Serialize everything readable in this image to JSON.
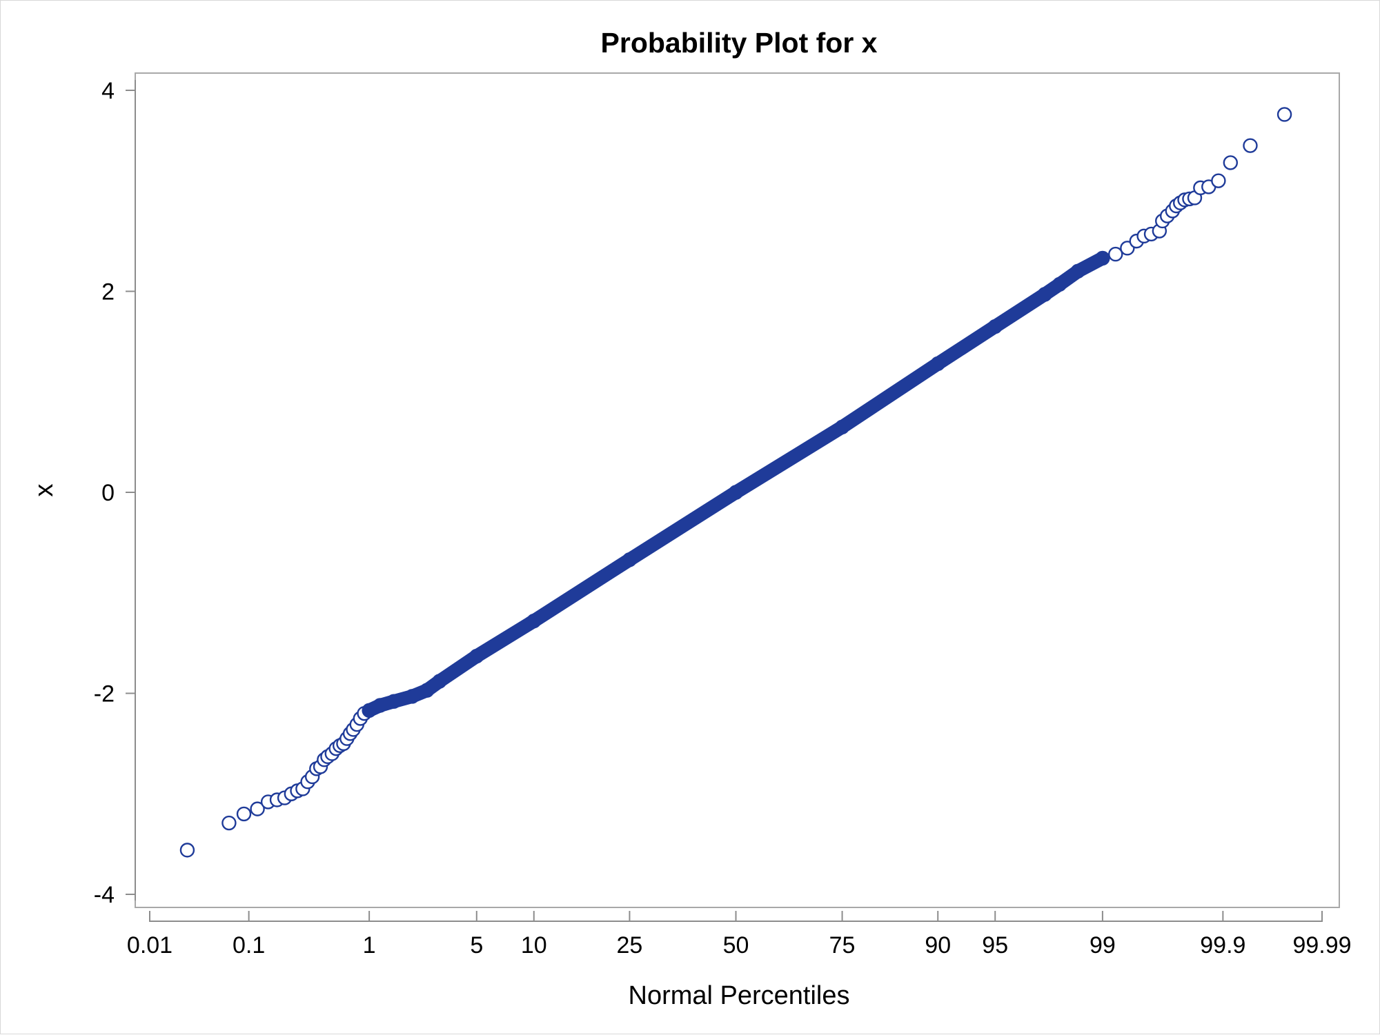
{
  "chart_data": {
    "type": "scatter",
    "title": "Probability Plot for x",
    "xlabel": "Normal Percentiles",
    "ylabel": "x",
    "x_scale": "normal-probability",
    "x_ticks": [
      0.01,
      0.1,
      1,
      5,
      10,
      25,
      50,
      75,
      90,
      95,
      99,
      99.9,
      99.99
    ],
    "x_tick_labels": [
      "0.01",
      "0.1",
      "1",
      "5",
      "10",
      "25",
      "50",
      "75",
      "90",
      "95",
      "99",
      "99.9",
      "99.99"
    ],
    "y_ticks": [
      -4,
      -2,
      0,
      2,
      4
    ],
    "y_tick_labels": [
      "-4",
      "-2",
      "0",
      "2",
      "4"
    ],
    "ylim": [
      -4.1,
      4.15
    ],
    "grid": false,
    "marker": "open-circle",
    "colors": {
      "marker": "#1f3b99"
    },
    "n_points": 10000,
    "series": [
      {
        "points": [
          {
            "x": 0.025,
            "y": -3.56
          },
          {
            "x": 0.065,
            "y": -3.29
          },
          {
            "x": 0.09,
            "y": -3.2
          },
          {
            "x": 0.12,
            "y": -3.15
          },
          {
            "x": 0.15,
            "y": -3.08
          },
          {
            "x": 0.18,
            "y": -3.06
          },
          {
            "x": 0.21,
            "y": -3.04
          },
          {
            "x": 0.24,
            "y": -3.0
          },
          {
            "x": 0.27,
            "y": -2.97
          },
          {
            "x": 0.3,
            "y": -2.95
          },
          {
            "x": 0.33,
            "y": -2.88
          },
          {
            "x": 0.36,
            "y": -2.83
          },
          {
            "x": 0.39,
            "y": -2.75
          },
          {
            "x": 0.42,
            "y": -2.73
          },
          {
            "x": 0.45,
            "y": -2.66
          },
          {
            "x": 0.48,
            "y": -2.63
          },
          {
            "x": 0.52,
            "y": -2.6
          },
          {
            "x": 0.56,
            "y": -2.55
          },
          {
            "x": 0.6,
            "y": -2.52
          },
          {
            "x": 0.64,
            "y": -2.5
          },
          {
            "x": 0.68,
            "y": -2.45
          },
          {
            "x": 0.72,
            "y": -2.4
          },
          {
            "x": 0.76,
            "y": -2.36
          },
          {
            "x": 0.81,
            "y": -2.31
          },
          {
            "x": 0.86,
            "y": -2.25
          },
          {
            "x": 0.92,
            "y": -2.2
          },
          {
            "x": 1.0,
            "y": -2.17
          },
          {
            "x": 1.2,
            "y": -2.12
          },
          {
            "x": 1.5,
            "y": -2.08
          },
          {
            "x": 2.0,
            "y": -2.03
          },
          {
            "x": 2.5,
            "y": -1.97
          },
          {
            "x": 3.0,
            "y": -1.88
          },
          {
            "x": 5.0,
            "y": -1.63
          },
          {
            "x": 10.0,
            "y": -1.28
          },
          {
            "x": 25.0,
            "y": -0.67
          },
          {
            "x": 50.0,
            "y": 0.0
          },
          {
            "x": 75.0,
            "y": 0.65
          },
          {
            "x": 90.0,
            "y": 1.28
          },
          {
            "x": 95.0,
            "y": 1.65
          },
          {
            "x": 97.5,
            "y": 1.97
          },
          {
            "x": 98.0,
            "y": 2.07
          },
          {
            "x": 98.5,
            "y": 2.2
          },
          {
            "x": 99.0,
            "y": 2.33
          },
          {
            "x": 99.2,
            "y": 2.37
          },
          {
            "x": 99.35,
            "y": 2.43
          },
          {
            "x": 99.45,
            "y": 2.5
          },
          {
            "x": 99.52,
            "y": 2.55
          },
          {
            "x": 99.58,
            "y": 2.57
          },
          {
            "x": 99.64,
            "y": 2.6
          },
          {
            "x": 99.66,
            "y": 2.7
          },
          {
            "x": 99.69,
            "y": 2.75
          },
          {
            "x": 99.72,
            "y": 2.8
          },
          {
            "x": 99.74,
            "y": 2.85
          },
          {
            "x": 99.76,
            "y": 2.88
          },
          {
            "x": 99.78,
            "y": 2.91
          },
          {
            "x": 99.8,
            "y": 2.92
          },
          {
            "x": 99.82,
            "y": 2.93
          },
          {
            "x": 99.84,
            "y": 3.03
          },
          {
            "x": 99.865,
            "y": 3.04
          },
          {
            "x": 99.89,
            "y": 3.1
          },
          {
            "x": 99.915,
            "y": 3.28
          },
          {
            "x": 99.945,
            "y": 3.45
          },
          {
            "x": 99.975,
            "y": 3.76
          }
        ]
      }
    ]
  }
}
